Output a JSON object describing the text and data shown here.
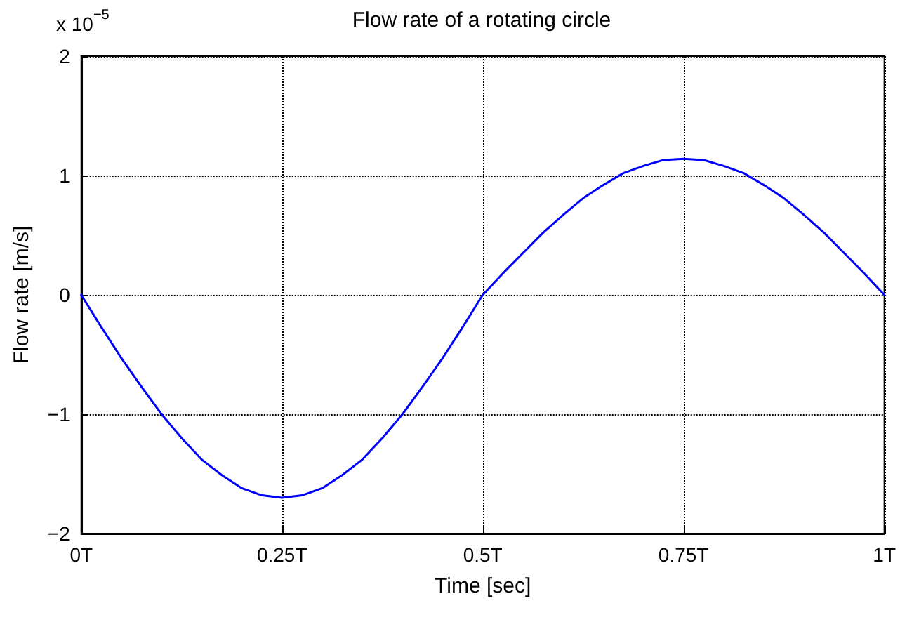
{
  "chart_data": {
    "type": "line",
    "title": "Flow rate of a rotating circle",
    "xlabel": "Time [sec]",
    "ylabel": "Flow rate [m/s]",
    "annotations": [
      "x 10$^{−5}$"
    ],
    "x": [
      0,
      0.025,
      0.05,
      0.075,
      0.1,
      0.125,
      0.15,
      0.175,
      0.2,
      0.225,
      0.25,
      0.275,
      0.3,
      0.325,
      0.35,
      0.375,
      0.4,
      0.425,
      0.45,
      0.475,
      0.5,
      0.525,
      0.55,
      0.575,
      0.6,
      0.625,
      0.65,
      0.675,
      0.7,
      0.725,
      0.75,
      0.775,
      0.8,
      0.825,
      0.85,
      0.875,
      0.9,
      0.925,
      0.95,
      0.975,
      1
    ],
    "series": [
      {
        "color": "#0000ff",
        "values": [
          0,
          -0.27,
          -0.53,
          -0.77,
          -1.0,
          -1.2,
          -1.38,
          -1.51,
          -1.62,
          -1.68,
          -1.7,
          -1.68,
          -1.62,
          -1.51,
          -1.38,
          -1.2,
          -1.0,
          -0.77,
          -0.53,
          -0.27,
          0,
          0.18,
          0.35,
          0.52,
          0.67,
          0.81,
          0.92,
          1.02,
          1.08,
          1.13,
          1.14,
          1.13,
          1.08,
          1.02,
          0.92,
          0.81,
          0.67,
          0.52,
          0.35,
          0.18,
          0
        ]
      }
    ],
    "xlim": [
      0,
      1
    ],
    "xticks": [
      {
        "value": 0,
        "label": "0T"
      },
      {
        "value": 0.25,
        "label": "0.25T"
      },
      {
        "value": 0.5,
        "label": "0.5T"
      },
      {
        "value": 0.75,
        "label": "0.75T"
      },
      {
        "value": 1,
        "label": "1T"
      }
    ],
    "ylim": [
      -2,
      2
    ],
    "yticks": [
      {
        "value": -2,
        "label": "−2"
      },
      {
        "value": -1,
        "label": "−1"
      },
      0,
      1,
      2
    ],
    "grid": true,
    "marker": "none",
    "line_style": "solid"
  }
}
